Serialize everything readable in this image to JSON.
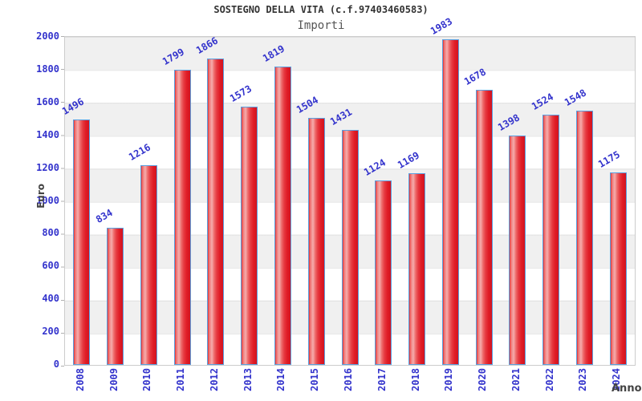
{
  "chart": {
    "title": "SOSTEGNO DELLA VITA (c.f.97403460583)",
    "subtitle": "Importi",
    "ylabel": "Euro",
    "xlabel": "Anno"
  },
  "chart_data": {
    "type": "bar",
    "title": "SOSTEGNO DELLA VITA (c.f.97403460583)",
    "subtitle": "Importi",
    "categories": [
      "2008",
      "2009",
      "2010",
      "2011",
      "2012",
      "2013",
      "2014",
      "2015",
      "2016",
      "2017",
      "2018",
      "2019",
      "2020",
      "2021",
      "2022",
      "2023",
      "2024"
    ],
    "values": [
      1496,
      834,
      1216,
      1799,
      1866,
      1573,
      1819,
      1504,
      1431,
      1124,
      1169,
      1983,
      1678,
      1398,
      1524,
      1548,
      1175
    ],
    "xlabel": "Anno",
    "ylabel": "Euro",
    "ylim": [
      0,
      2000
    ],
    "ytick_step": 200,
    "yticks": [
      0,
      200,
      400,
      600,
      800,
      1000,
      1200,
      1400,
      1600,
      1800,
      2000
    ],
    "legend": "none",
    "grid": "horizontal-bands-alternating-gray-white",
    "bar_value_labels": "rotated-blue-above-bars",
    "colors": {
      "bar_fill": "#e8232e",
      "bar_highlight": "#f5adad",
      "bar_border": "#5ba0e0",
      "tick_label_blue": "#3333cc",
      "axis_title_gray": "#444444",
      "band_gray": "#f0f0f0",
      "plot_border": "#cccccc",
      "title_color": "#333333",
      "subtitle_color": "#555555"
    }
  }
}
